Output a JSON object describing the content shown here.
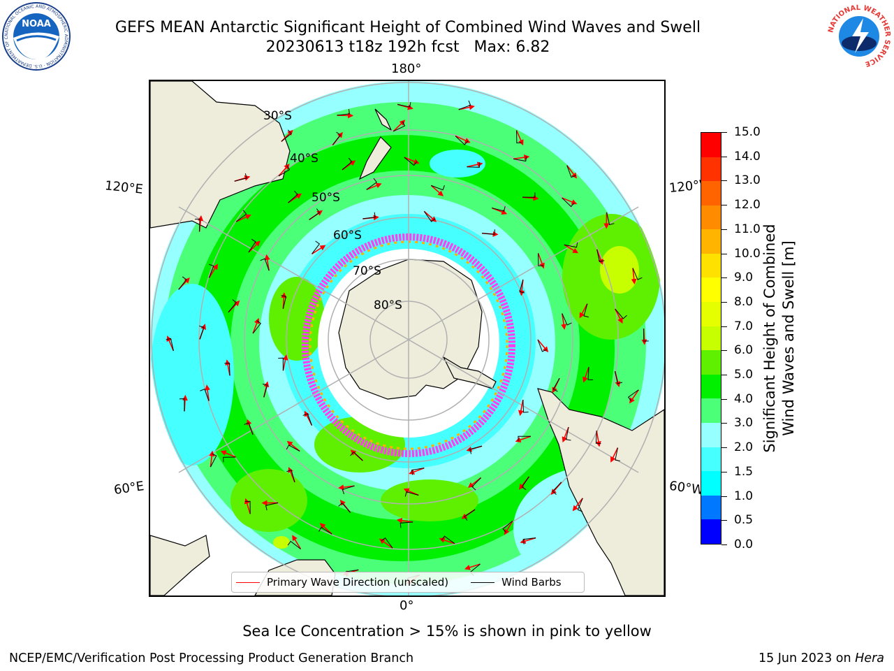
{
  "title": {
    "line1": "GEFS MEAN Antarctic Significant Height of Combined Wind Waves and Swell",
    "line2": "20230613 t18z 192h fcst   Max: 6.82"
  },
  "logos": {
    "noaa": {
      "text": "NOAA",
      "ring_text": "NATIONAL OCEANIC AND ATMOSPHERIC ADMINISTRATION · U.S. DEPARTMENT OF COMMERCE",
      "icon": "noaa-seagull-logo"
    },
    "nws": {
      "ring_text": "NATIONAL WEATHER SERVICE",
      "icon": "nws-lightning-cloud-logo"
    }
  },
  "map": {
    "projection": "south-polar-stereographic",
    "longitude_labels": {
      "top": "180°",
      "bottom": "0°",
      "left_upper": "120°E",
      "left_lower": "60°E",
      "right_upper": "120°W",
      "right_lower": "60°W"
    },
    "latitude_labels": [
      "30°S",
      "40°S",
      "50°S",
      "60°S",
      "70°S",
      "80°S"
    ],
    "colors": {
      "land": "#eeecdb",
      "sea_ice_edge": "#ff3cf0",
      "sea_ice_inner": "#ffb300",
      "wave_arrow": "#ff0000",
      "wind_barb": "#000000",
      "grid": "#b0b0b0"
    }
  },
  "legend": {
    "items": [
      {
        "label": "Primary Wave Direction (unscaled)",
        "color": "#ff0000"
      },
      {
        "label": "Wind Barbs",
        "color": "#000000"
      }
    ]
  },
  "colorbar": {
    "label_line1": "Significant Height of Combined",
    "label_line2": "Wind Waves and Swell [m]",
    "levels": [
      0.0,
      0.5,
      1.0,
      1.5,
      2.0,
      3.0,
      4.0,
      5.0,
      6.0,
      7.0,
      8.0,
      9.0,
      10.0,
      11.0,
      12.0,
      13.0,
      14.0,
      15.0
    ],
    "tick_labels": [
      "0.0",
      "0.5",
      "1.0",
      "1.5",
      "2.0",
      "3.0",
      "4.0",
      "5.0",
      "6.0",
      "7.0",
      "8.0",
      "9.0",
      "10.0",
      "11.0",
      "12.0",
      "13.0",
      "14.0",
      "15.0"
    ],
    "colors": [
      "#0000ff",
      "#0078ff",
      "#00ffff",
      "#46ffff",
      "#96ffff",
      "#4cff78",
      "#00f000",
      "#5ef000",
      "#c8ff00",
      "#e6ff00",
      "#ffff00",
      "#ffe100",
      "#ffb400",
      "#ff8c00",
      "#ff6400",
      "#ff3200",
      "#ff0000"
    ]
  },
  "notes": {
    "sea_ice": "Sea Ice Concentration > 15% is shown in pink to yellow",
    "footer_left": "NCEP/EMC/Verification Post Processing Product Generation Branch",
    "footer_date": "15 Jun 2023 on ",
    "footer_machine": "Hera"
  }
}
